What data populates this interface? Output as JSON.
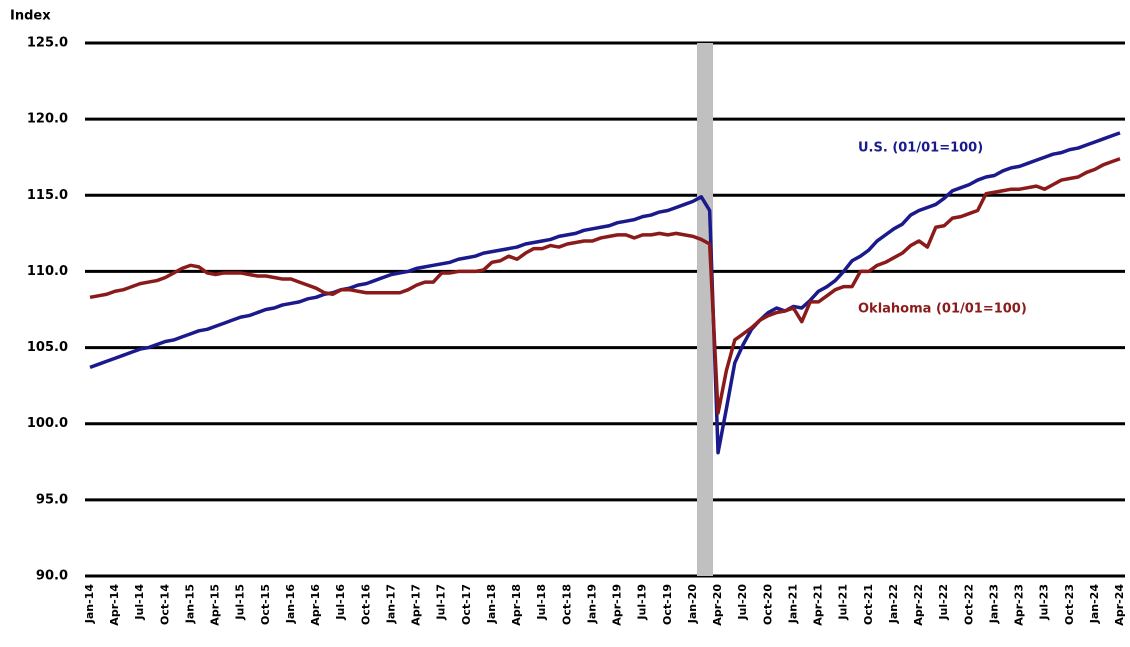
{
  "chart_data": {
    "type": "line",
    "y_label": "Index",
    "categories": [
      "Jan-14",
      null,
      null,
      "Apr-14",
      null,
      null,
      "Jul-14",
      null,
      null,
      "Oct-14",
      null,
      null,
      "Jan-15",
      null,
      null,
      "Apr-15",
      null,
      null,
      "Jul-15",
      null,
      null,
      "Oct-15",
      null,
      null,
      "Jan-16",
      null,
      null,
      "Apr-16",
      null,
      null,
      "Jul-16",
      null,
      null,
      "Oct-16",
      null,
      null,
      "Jan-17",
      null,
      null,
      "Apr-17",
      null,
      null,
      "Jul-17",
      null,
      null,
      "Oct-17",
      null,
      null,
      "Jan-18",
      null,
      null,
      "Apr-18",
      null,
      null,
      "Jul-18",
      null,
      null,
      "Oct-18",
      null,
      null,
      "Jan-19",
      null,
      null,
      "Apr-19",
      null,
      null,
      "Jul-19",
      null,
      null,
      "Oct-19",
      null,
      null,
      "Jan-20",
      null,
      null,
      "Apr-20",
      null,
      null,
      "Jul-20",
      null,
      null,
      "Oct-20",
      null,
      null,
      "Jan-21",
      null,
      null,
      "Apr-21",
      null,
      null,
      "Jul-21",
      null,
      null,
      "Oct-21",
      null,
      null,
      "Jan-22",
      null,
      null,
      "Apr-22",
      null,
      null,
      "Jul-22",
      null,
      null,
      "Oct-22",
      null,
      null,
      "Jan-23",
      null,
      null,
      "Apr-23",
      null,
      null,
      "Jul-23",
      null,
      null,
      "Oct-23",
      null,
      null,
      "Jan-24",
      null,
      null,
      "Apr-24"
    ],
    "series": [
      {
        "name": "U.S. (01/01=100)",
        "color": "#1a1a8c",
        "values": [
          103.7,
          103.9,
          104.1,
          104.3,
          104.5,
          104.7,
          104.9,
          105.0,
          105.2,
          105.4,
          105.5,
          105.7,
          105.9,
          106.1,
          106.2,
          106.4,
          106.6,
          106.8,
          107.0,
          107.1,
          107.3,
          107.5,
          107.6,
          107.8,
          107.9,
          108.0,
          108.2,
          108.3,
          108.5,
          108.6,
          108.8,
          108.9,
          109.1,
          109.2,
          109.4,
          109.6,
          109.8,
          109.9,
          110.0,
          110.2,
          110.3,
          110.4,
          110.5,
          110.6,
          110.8,
          110.9,
          111.0,
          111.2,
          111.3,
          111.4,
          111.5,
          111.6,
          111.8,
          111.9,
          112.0,
          112.1,
          112.3,
          112.4,
          112.5,
          112.7,
          112.8,
          112.9,
          113.0,
          113.2,
          113.3,
          113.4,
          113.6,
          113.7,
          113.9,
          114.0,
          114.2,
          114.4,
          114.6,
          114.9,
          114.0,
          98.1,
          101.0,
          104.0,
          105.2,
          106.2,
          106.8,
          107.3,
          107.6,
          107.4,
          107.7,
          107.6,
          108.1,
          108.7,
          109.0,
          109.4,
          110.0,
          110.7,
          111.0,
          111.4,
          112.0,
          112.4,
          112.8,
          113.1,
          113.7,
          114.0,
          114.2,
          114.4,
          114.8,
          115.3,
          115.5,
          115.7,
          116.0,
          116.2,
          116.3,
          116.6,
          116.8,
          116.9,
          117.1,
          117.3,
          117.5,
          117.7,
          117.8,
          118.0,
          118.1,
          118.3,
          118.5,
          118.7,
          118.9,
          119.1
        ]
      },
      {
        "name": "Oklahoma (01/01=100)",
        "color": "#8b1a1a",
        "values": [
          108.3,
          108.4,
          108.5,
          108.7,
          108.8,
          109.0,
          109.2,
          109.3,
          109.4,
          109.6,
          109.9,
          110.2,
          110.4,
          110.3,
          109.9,
          109.8,
          109.9,
          109.9,
          109.9,
          109.8,
          109.7,
          109.7,
          109.6,
          109.5,
          109.5,
          109.3,
          109.1,
          108.9,
          108.6,
          108.5,
          108.8,
          108.8,
          108.7,
          108.6,
          108.6,
          108.6,
          108.6,
          108.6,
          108.8,
          109.1,
          109.3,
          109.3,
          109.9,
          109.9,
          110.0,
          110.0,
          110.0,
          110.1,
          110.6,
          110.7,
          111.0,
          110.8,
          111.2,
          111.5,
          111.5,
          111.7,
          111.6,
          111.8,
          111.9,
          112.0,
          112.0,
          112.2,
          112.3,
          112.4,
          112.4,
          112.2,
          112.4,
          112.4,
          112.5,
          112.4,
          112.5,
          112.4,
          112.3,
          112.1,
          111.8,
          100.7,
          103.5,
          105.5,
          105.9,
          106.3,
          106.8,
          107.1,
          107.3,
          107.4,
          107.6,
          106.7,
          108.0,
          108.0,
          108.4,
          108.8,
          109.0,
          109.0,
          110.0,
          110.0,
          110.4,
          110.6,
          110.9,
          111.2,
          111.7,
          112.0,
          111.6,
          112.9,
          113.0,
          113.5,
          113.6,
          113.8,
          114.0,
          115.1,
          115.2,
          115.3,
          115.4,
          115.4,
          115.5,
          115.6,
          115.4,
          115.7,
          116.0,
          116.1,
          116.2,
          116.5,
          116.7,
          117.0,
          117.2,
          117.4
        ]
      }
    ],
    "ylim": [
      90,
      125
    ],
    "yticks": [
      {
        "value": 90,
        "label": "90.0"
      },
      {
        "value": 95,
        "label": "95.0"
      },
      {
        "value": 100,
        "label": "100.0"
      },
      {
        "value": 105,
        "label": "105.0"
      },
      {
        "value": 110,
        "label": "110.0"
      },
      {
        "value": 115,
        "label": "115.0"
      },
      {
        "value": 120,
        "label": "120.0"
      },
      {
        "value": 125,
        "label": "125.0"
      }
    ],
    "grid": true
  }
}
